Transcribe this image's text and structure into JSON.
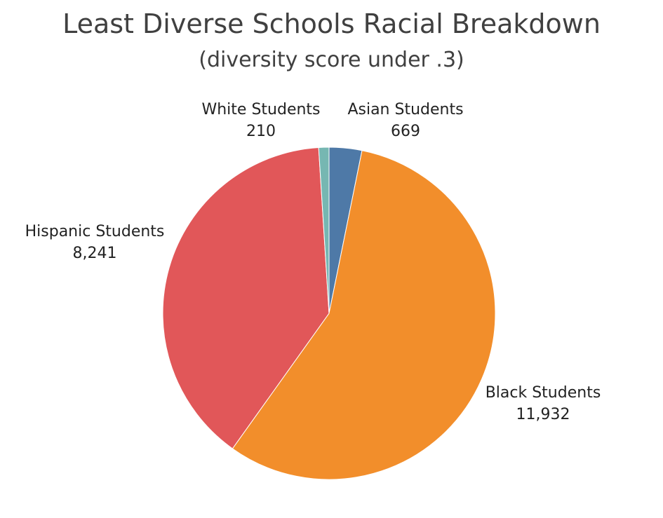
{
  "chart_data": {
    "type": "pie",
    "title": "Least Diverse Schools Racial Breakdown",
    "subtitle": "(diversity score under .3)",
    "slices": [
      {
        "label": "Asian Students",
        "value": 669,
        "value_label": "669",
        "color": "#4e79a7"
      },
      {
        "label": "Black Students",
        "value": 11932,
        "value_label": "11,932",
        "color": "#f28e2b"
      },
      {
        "label": "Hispanic Students",
        "value": 8241,
        "value_label": "8,241",
        "color": "#e15759"
      },
      {
        "label": "White Students",
        "value": 210,
        "value_label": "210",
        "color": "#76b7b2"
      }
    ],
    "start_angle_deg": 0,
    "direction": "clockwise",
    "legend": "none"
  }
}
